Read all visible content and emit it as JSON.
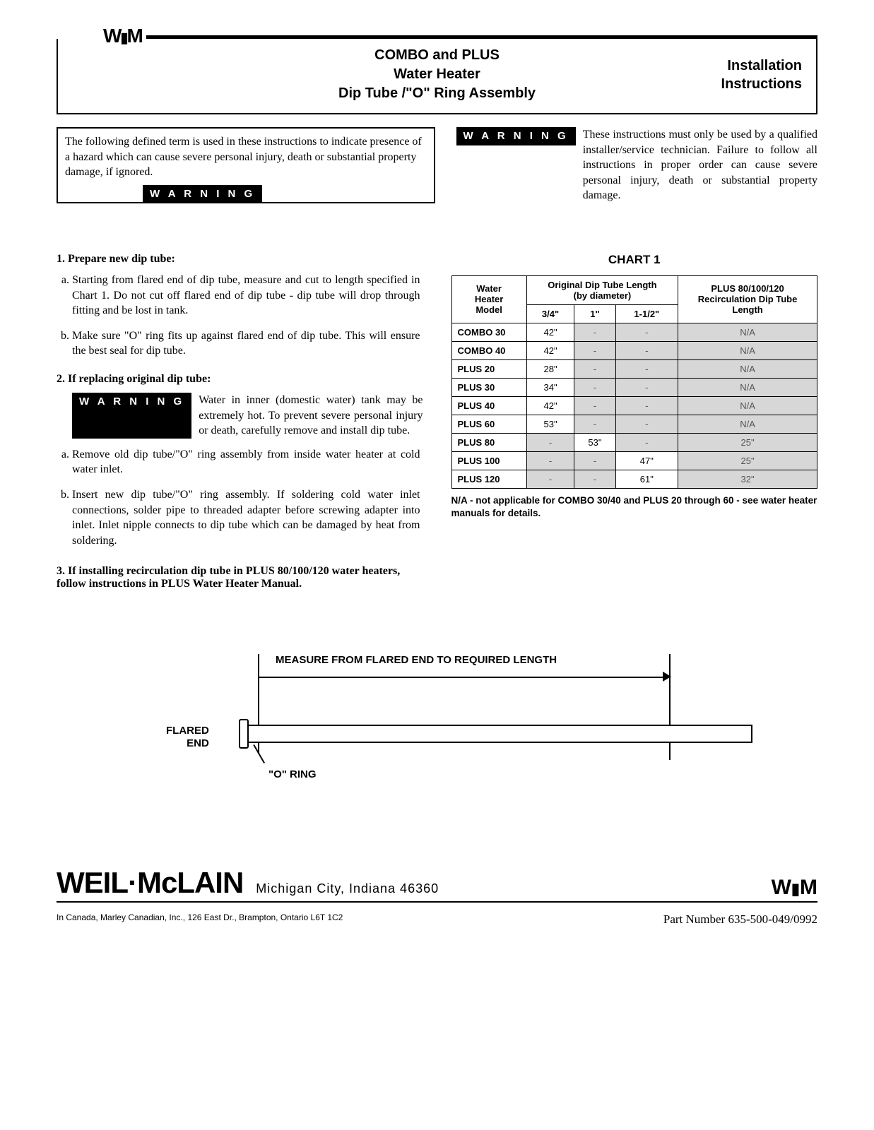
{
  "header": {
    "title1": "COMBO and PLUS",
    "title2": "Water Heater",
    "title3": "Dip Tube /\"O\" Ring Assembly",
    "right1": "Installation",
    "right2": "Instructions"
  },
  "warn": {
    "badge": "W A R N I N G",
    "left_text": "The following defined term is used in these instructions to indicate presence of a hazard which can cause severe personal injury, death or substantial property damage, if ignored.",
    "right_text": "These instructions must only be used by a qualified installer/service technician. Failure to follow all instructions in proper order can cause severe personal injury, death or substantial property damage."
  },
  "steps": {
    "s1_head": "1. Prepare new dip tube:",
    "s1a": "Starting from flared end of dip tube, measure and cut to length specified in Chart 1. Do not cut off flared end of dip tube - dip tube will drop through fitting and be lost in tank.",
    "s1b": "Make sure \"O\" ring fits up against flared end of dip tube. This will ensure the best seal for dip tube.",
    "s2_head": "2. If replacing original dip tube:",
    "s2_warn": "Water in inner (domestic water) tank may be extremely hot. To prevent severe personal injury or death, carefully remove and install dip tube.",
    "s2a": "Remove old dip tube/\"O\" ring assembly from inside water heater at cold water inlet.",
    "s2b": "Insert new dip tube/\"O\" ring assembly. If soldering cold water inlet connections, solder pipe to threaded adapter before screwing adapter into inlet. Inlet nipple connects to dip tube which can be damaged by heat from soldering.",
    "s3_head": "3. If installing recirculation dip tube in PLUS 80/100/120 water heaters, follow instructions in PLUS Water Heater Manual."
  },
  "chart": {
    "title": "CHART 1",
    "h_model_l1": "Water",
    "h_model_l2": "Heater",
    "h_model_l3": "Model",
    "h_orig_l1": "Original Dip Tube Length",
    "h_orig_l2": "(by diameter)",
    "h_34": "3/4\"",
    "h_1": "1\"",
    "h_112": "1-1/2\"",
    "h_recirc_l1": "PLUS 80/100/120",
    "h_recirc_l2": "Recirculation Dip Tube",
    "h_recirc_l3": "Length",
    "rows": [
      {
        "model": "COMBO 30",
        "a": "42\"",
        "b": "-",
        "c": "-",
        "d": "N/A"
      },
      {
        "model": "COMBO 40",
        "a": "42\"",
        "b": "-",
        "c": "-",
        "d": "N/A"
      },
      {
        "model": "PLUS 20",
        "a": "28\"",
        "b": "-",
        "c": "-",
        "d": "N/A"
      },
      {
        "model": "PLUS 30",
        "a": "34\"",
        "b": "-",
        "c": "-",
        "d": "N/A"
      },
      {
        "model": "PLUS 40",
        "a": "42\"",
        "b": "-",
        "c": "-",
        "d": "N/A"
      },
      {
        "model": "PLUS 60",
        "a": "53\"",
        "b": "-",
        "c": "-",
        "d": "N/A"
      },
      {
        "model": "PLUS 80",
        "a": "-",
        "b": "53\"",
        "c": "-",
        "d": "25\""
      },
      {
        "model": "PLUS 100",
        "a": "-",
        "b": "-",
        "c": "47\"",
        "d": "25\""
      },
      {
        "model": "PLUS 120",
        "a": "-",
        "b": "-",
        "c": "61\"",
        "d": "32\""
      }
    ],
    "note": "N/A - not applicable for COMBO 30/40 and PLUS 20 through 60 - see water heater manuals for details."
  },
  "diagram": {
    "measure": "MEASURE FROM FLARED END TO REQUIRED LENGTH",
    "flared_l1": "FLARED",
    "flared_l2": "END",
    "oring": "\"O\" RING"
  },
  "footer": {
    "brand": "WEIL·McLAIN",
    "location": "Michigan City, Indiana   46360",
    "canada": "In Canada, Marley Canadian, Inc., 126 East Dr., Brampton, Ontario L6T 1C2",
    "part": "Part Number 635-500-049/0992"
  }
}
